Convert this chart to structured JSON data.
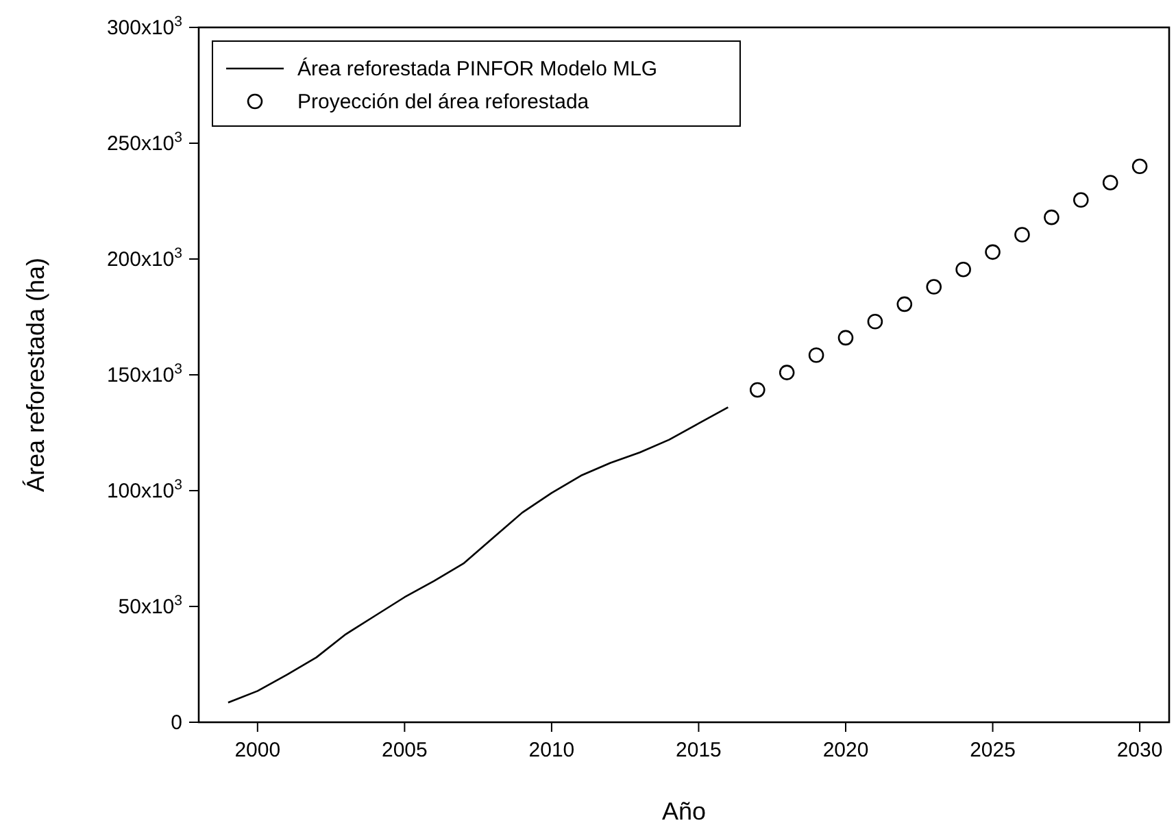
{
  "chart_data": {
    "type": "line",
    "xlabel": "Año",
    "ylabel": "Área reforestada (ha)",
    "xlim": [
      1998,
      2031
    ],
    "xticks": [
      2000,
      2005,
      2010,
      2015,
      2020,
      2025,
      2030
    ],
    "ylim": [
      0,
      300000
    ],
    "yticks": [
      {
        "value": 0,
        "label": "0"
      },
      {
        "value": 50000,
        "label": "50x10$^{3}$"
      },
      {
        "value": 100000,
        "label": "100x10$^{3}$"
      },
      {
        "value": 150000,
        "label": "150x10$^{3}$"
      },
      {
        "value": 200000,
        "label": "200x10$^{3}$"
      },
      {
        "value": 250000,
        "label": "250x10$^{3}$"
      },
      {
        "value": 300000,
        "label": "300x10$^{3}$"
      }
    ],
    "grid": false,
    "legend": "top left",
    "series": [
      {
        "name": "Área reforestada PINFOR Modelo MLG",
        "color": "#000000",
        "marker": "none",
        "line_style": "solid",
        "x": [
          1999,
          2000,
          2001,
          2002,
          2003,
          2004,
          2005,
          2006,
          2007,
          2008,
          2009,
          2010,
          2011,
          2012,
          2013,
          2014,
          2015,
          2016
        ],
        "values": [
          8500,
          13500,
          20500,
          28000,
          38000,
          46000,
          54000,
          61000,
          68500,
          79500,
          90500,
          99000,
          106500,
          112000,
          116500,
          122000,
          129000,
          136000
        ]
      },
      {
        "name": "Proyección del área reforestada",
        "type": "scatter",
        "color": "#000000",
        "marker": "circle",
        "x": [
          2017,
          2018,
          2019,
          2020,
          2021,
          2022,
          2023,
          2024,
          2025,
          2026,
          2027,
          2028,
          2029,
          2030
        ],
        "values": [
          143500,
          151000,
          158500,
          166000,
          173000,
          180500,
          188000,
          195500,
          203000,
          210500,
          218000,
          225500,
          233000,
          240000
        ]
      }
    ]
  }
}
